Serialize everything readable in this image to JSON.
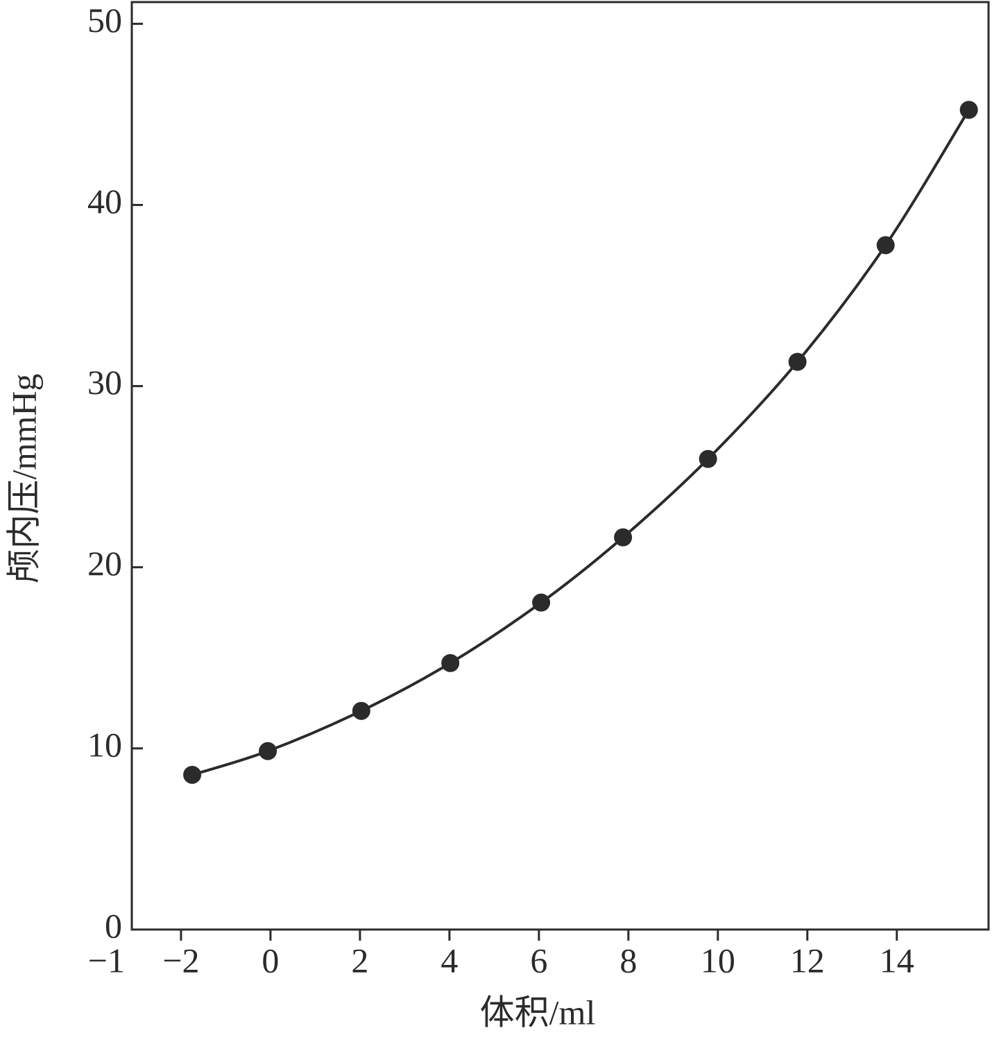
{
  "chart_data": {
    "type": "line",
    "x_label": "体积/ml",
    "y_label": "颅内压/mmHg",
    "corner_label": "−1",
    "x": [
      -1.75,
      -0.06,
      2.03,
      4.02,
      6.05,
      7.88,
      9.78,
      11.78,
      13.75,
      15.61
    ],
    "series": [
      {
        "color": "#2b2b2b",
        "values": [
          8.54,
          9.85,
          12.07,
          14.71,
          18.05,
          21.65,
          25.98,
          31.34,
          37.78,
          45.25
        ]
      }
    ],
    "xlim": [
      -3.1,
      16.05
    ],
    "xticks": [
      {
        "value": -2,
        "label": "−2"
      },
      0,
      2,
      4,
      6,
      8,
      10,
      12,
      14
    ],
    "ylim": [
      0,
      51.2
    ],
    "yticks": [
      0,
      10,
      20,
      30,
      40,
      50
    ],
    "grid": false
  }
}
